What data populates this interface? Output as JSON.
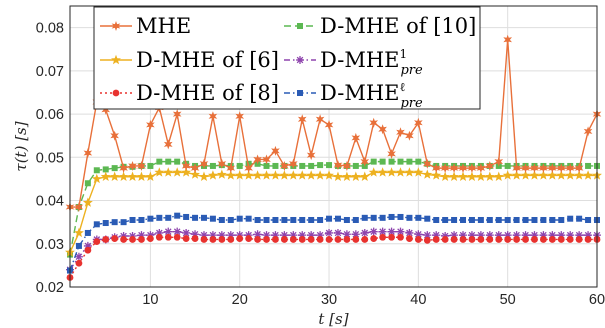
{
  "chart_data": {
    "type": "line",
    "xlabel": "t [s]",
    "ylabel": "τ(t) [s]",
    "xlim": [
      1,
      60
    ],
    "ylim": [
      0.02,
      0.085
    ],
    "xticks": [
      10,
      20,
      30,
      40,
      50,
      60
    ],
    "yticks": [
      0.02,
      0.03,
      0.04,
      0.05,
      0.06,
      0.07,
      0.08
    ],
    "grid": true,
    "legend_position": "top-left",
    "x": [
      1,
      2,
      3,
      4,
      5,
      6,
      7,
      8,
      9,
      10,
      11,
      12,
      13,
      14,
      15,
      16,
      17,
      18,
      19,
      20,
      21,
      22,
      23,
      24,
      25,
      26,
      27,
      28,
      29,
      30,
      31,
      32,
      33,
      34,
      35,
      36,
      37,
      38,
      39,
      40,
      41,
      42,
      43,
      44,
      45,
      46,
      47,
      48,
      49,
      50,
      51,
      52,
      53,
      54,
      55,
      56,
      57,
      58,
      59,
      60
    ],
    "series": [
      {
        "name": "MHE",
        "color": "#e8703a",
        "marker": "star6",
        "dash": "",
        "values": [
          0.0385,
          0.0385,
          0.051,
          0.0628,
          0.061,
          0.055,
          0.0475,
          0.048,
          0.048,
          0.0575,
          0.0615,
          0.053,
          0.06,
          0.048,
          0.0475,
          0.0485,
          0.0595,
          0.0485,
          0.0475,
          0.0595,
          0.0475,
          0.0495,
          0.0495,
          0.0515,
          0.048,
          0.0485,
          0.0588,
          0.0505,
          0.0588,
          0.0575,
          0.0482,
          0.048,
          0.0545,
          0.049,
          0.058,
          0.0565,
          0.0508,
          0.0558,
          0.055,
          0.058,
          0.0485,
          0.0475,
          0.0475,
          0.0475,
          0.0475,
          0.0475,
          0.0475,
          0.048,
          0.049,
          0.0772,
          0.0475,
          0.0475,
          0.0475,
          0.0475,
          0.0475,
          0.0475,
          0.0475,
          0.0475,
          0.056,
          0.06
        ]
      },
      {
        "name": "D-MHE of [6]",
        "color": "#edb120",
        "marker": "star5",
        "dash": "",
        "values": [
          0.028,
          0.0325,
          0.0395,
          0.045,
          0.0455,
          0.0455,
          0.0455,
          0.0455,
          0.0455,
          0.0455,
          0.0465,
          0.0465,
          0.0465,
          0.0465,
          0.046,
          0.0455,
          0.0458,
          0.046,
          0.0458,
          0.0458,
          0.0458,
          0.0458,
          0.0458,
          0.0458,
          0.0458,
          0.0458,
          0.0458,
          0.0458,
          0.0458,
          0.0458,
          0.0455,
          0.0455,
          0.0455,
          0.0455,
          0.0465,
          0.0465,
          0.0465,
          0.0465,
          0.0465,
          0.0465,
          0.046,
          0.0458,
          0.0455,
          0.0455,
          0.0455,
          0.0455,
          0.0455,
          0.0455,
          0.0455,
          0.0458,
          0.0458,
          0.0458,
          0.0458,
          0.0458,
          0.0458,
          0.0458,
          0.0458,
          0.0458,
          0.0458,
          0.0458
        ]
      },
      {
        "name": "D-MHE of [8]",
        "color": "#e8322f",
        "marker": "circle",
        "dash": "2,3",
        "values": [
          0.0222,
          0.0255,
          0.0285,
          0.0305,
          0.031,
          0.0312,
          0.031,
          0.031,
          0.031,
          0.0312,
          0.0315,
          0.0315,
          0.0315,
          0.0312,
          0.0312,
          0.031,
          0.031,
          0.031,
          0.031,
          0.0312,
          0.0312,
          0.031,
          0.031,
          0.031,
          0.031,
          0.031,
          0.031,
          0.031,
          0.031,
          0.031,
          0.031,
          0.031,
          0.031,
          0.031,
          0.0312,
          0.0315,
          0.0315,
          0.0315,
          0.0312,
          0.031,
          0.0308,
          0.031,
          0.031,
          0.031,
          0.031,
          0.031,
          0.031,
          0.031,
          0.031,
          0.031,
          0.031,
          0.031,
          0.031,
          0.031,
          0.031,
          0.031,
          0.031,
          0.031,
          0.031,
          0.031
        ]
      },
      {
        "name": "D-MHE of [10]",
        "color": "#5cb852",
        "marker": "square",
        "dash": "7,4",
        "values": [
          0.0275,
          0.0385,
          0.044,
          0.047,
          0.0472,
          0.0475,
          0.0478,
          0.0478,
          0.048,
          0.048,
          0.049,
          0.049,
          0.049,
          0.0485,
          0.048,
          0.048,
          0.048,
          0.0482,
          0.048,
          0.048,
          0.0485,
          0.0485,
          0.048,
          0.048,
          0.048,
          0.048,
          0.048,
          0.048,
          0.0482,
          0.0482,
          0.048,
          0.048,
          0.048,
          0.048,
          0.049,
          0.049,
          0.049,
          0.049,
          0.049,
          0.049,
          0.0485,
          0.048,
          0.048,
          0.048,
          0.048,
          0.048,
          0.048,
          0.048,
          0.048,
          0.048,
          0.048,
          0.048,
          0.048,
          0.048,
          0.048,
          0.048,
          0.048,
          0.048,
          0.048,
          0.048
        ]
      },
      {
        "name": "D-MHE",
        "sup": "1",
        "sub": "pre",
        "color": "#8e44ad",
        "marker": "asterisk",
        "dash": "6,3,1.5,3",
        "values": [
          0.024,
          0.027,
          0.0295,
          0.031,
          0.031,
          0.0315,
          0.0318,
          0.0318,
          0.032,
          0.032,
          0.0325,
          0.0328,
          0.0328,
          0.0325,
          0.0322,
          0.032,
          0.032,
          0.032,
          0.032,
          0.032,
          0.032,
          0.0322,
          0.032,
          0.032,
          0.032,
          0.032,
          0.032,
          0.032,
          0.032,
          0.0325,
          0.0325,
          0.0322,
          0.0322,
          0.0325,
          0.0328,
          0.0328,
          0.0328,
          0.0328,
          0.0325,
          0.0322,
          0.032,
          0.032,
          0.0318,
          0.032,
          0.032,
          0.032,
          0.032,
          0.032,
          0.032,
          0.032,
          0.032,
          0.032,
          0.032,
          0.032,
          0.032,
          0.032,
          0.032,
          0.032,
          0.032,
          0.032
        ]
      },
      {
        "name": "D-MHE",
        "sup": "ℓ",
        "sub": "pre",
        "color": "#2a5bb5",
        "marker": "square",
        "dash": "6,3,1.5,3",
        "values": [
          0.0238,
          0.0295,
          0.0325,
          0.0345,
          0.0348,
          0.035,
          0.035,
          0.0355,
          0.0355,
          0.0358,
          0.036,
          0.036,
          0.0365,
          0.0362,
          0.036,
          0.036,
          0.0358,
          0.0355,
          0.0355,
          0.0358,
          0.0358,
          0.0355,
          0.0355,
          0.0355,
          0.0355,
          0.0355,
          0.0355,
          0.0355,
          0.0355,
          0.0358,
          0.0358,
          0.0355,
          0.0355,
          0.036,
          0.036,
          0.036,
          0.0362,
          0.0362,
          0.036,
          0.036,
          0.0358,
          0.0355,
          0.0355,
          0.0355,
          0.0355,
          0.0355,
          0.0355,
          0.0355,
          0.0355,
          0.0355,
          0.0355,
          0.0355,
          0.0355,
          0.0355,
          0.0355,
          0.0355,
          0.0358,
          0.0358,
          0.0355,
          0.0355
        ]
      }
    ]
  }
}
